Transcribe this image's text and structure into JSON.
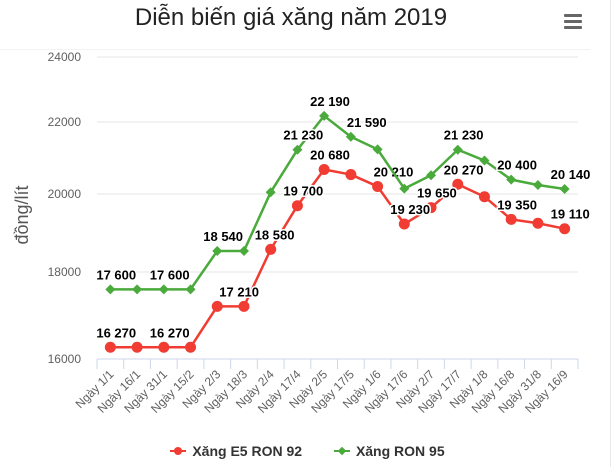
{
  "header": {
    "title": "Diễn biến giá xăng năm 2019",
    "menu_icon": "hamburger-menu-icon"
  },
  "legend": {
    "items": [
      {
        "label": "Xăng E5 RON 92",
        "color": "#f03c32",
        "marker": "circle"
      },
      {
        "label": "Xăng RON 95",
        "color": "#4aaa3c",
        "marker": "diamond"
      }
    ]
  },
  "chart_data": {
    "type": "line",
    "title": "Diễn biến giá xăng năm 2019",
    "xlabel": "",
    "ylabel": "đồng/lít",
    "ylim": [
      16000,
      24000
    ],
    "yticks": [
      16000,
      18000,
      20000,
      22000,
      24000
    ],
    "ytick_labels": [
      "16000",
      "18000",
      "20000",
      "22000",
      "24000"
    ],
    "grid": true,
    "legend_position": "bottom",
    "categories": [
      "Ngày 1/1",
      "Ngày 16/1",
      "Ngày 31/1",
      "Ngày 15/2",
      "Ngày 2/3",
      "Ngày 18/3",
      "Ngày 2/4",
      "Ngày 17/4",
      "Ngày 2/5",
      "Ngày 17/5",
      "Ngày 1/6",
      "Ngày 17/6",
      "Ngày 2/7",
      "Ngày 17/7",
      "Ngày 1/8",
      "Ngày 16/8",
      "Ngày 31/8",
      "Ngày 16/9"
    ],
    "series": [
      {
        "name": "Xăng E5 RON 92",
        "color": "#f03c32",
        "values": [
          16270,
          16270,
          16270,
          16270,
          17210,
          17210,
          18580,
          19700,
          20680,
          20540,
          20210,
          19230,
          19650,
          20270,
          19930,
          19350,
          19250,
          19110
        ],
        "labels": [
          "16 270",
          "",
          "16 270",
          "",
          "17 210",
          "",
          "18 580",
          "19 700",
          "20 680",
          "",
          "20 210",
          "19 230",
          "19 650",
          "20 270",
          "",
          "19 350",
          "",
          "19 110"
        ]
      },
      {
        "name": "Xăng RON 95",
        "color": "#4aaa3c",
        "values": [
          17600,
          17600,
          17600,
          17600,
          18540,
          18540,
          20050,
          21230,
          22190,
          21590,
          21240,
          20150,
          20520,
          21230,
          20930,
          20400,
          20250,
          20140
        ],
        "labels": [
          "17 600",
          "",
          "17 600",
          "",
          "18 540",
          "",
          "",
          "21 230",
          "22 190",
          "21 590",
          "",
          "",
          "",
          "21 230",
          "",
          "20 400",
          "",
          "20 140"
        ]
      }
    ]
  }
}
